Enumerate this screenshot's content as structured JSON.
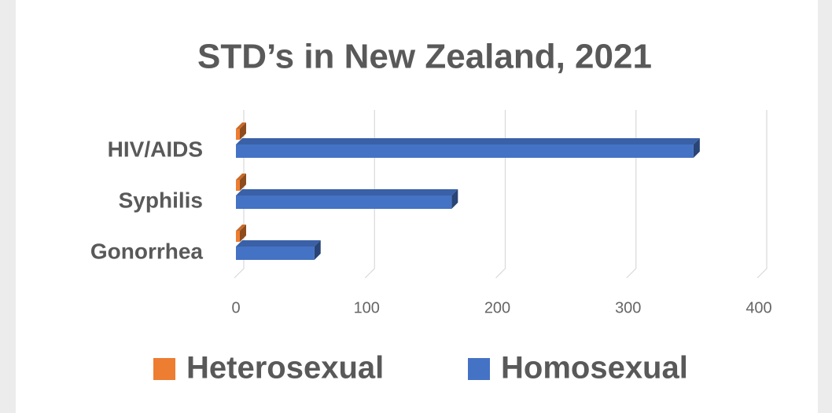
{
  "chart_data": {
    "type": "bar3d_horizontal",
    "title": "STD’s in New Zealand, 2021",
    "categories": [
      "HIV/AIDS",
      "Syphilis",
      "Gonorrhea"
    ],
    "series": [
      {
        "name": "Heterosexual",
        "color": "#ed7d31",
        "values": [
          3,
          3,
          3
        ]
      },
      {
        "name": "Homosexual",
        "color": "#4472c4",
        "values": [
          350,
          165,
          60
        ]
      }
    ],
    "xlim": [
      0,
      400
    ],
    "xticks": [
      0,
      100,
      200,
      300,
      400
    ],
    "grid": true,
    "legend": "bottom"
  }
}
